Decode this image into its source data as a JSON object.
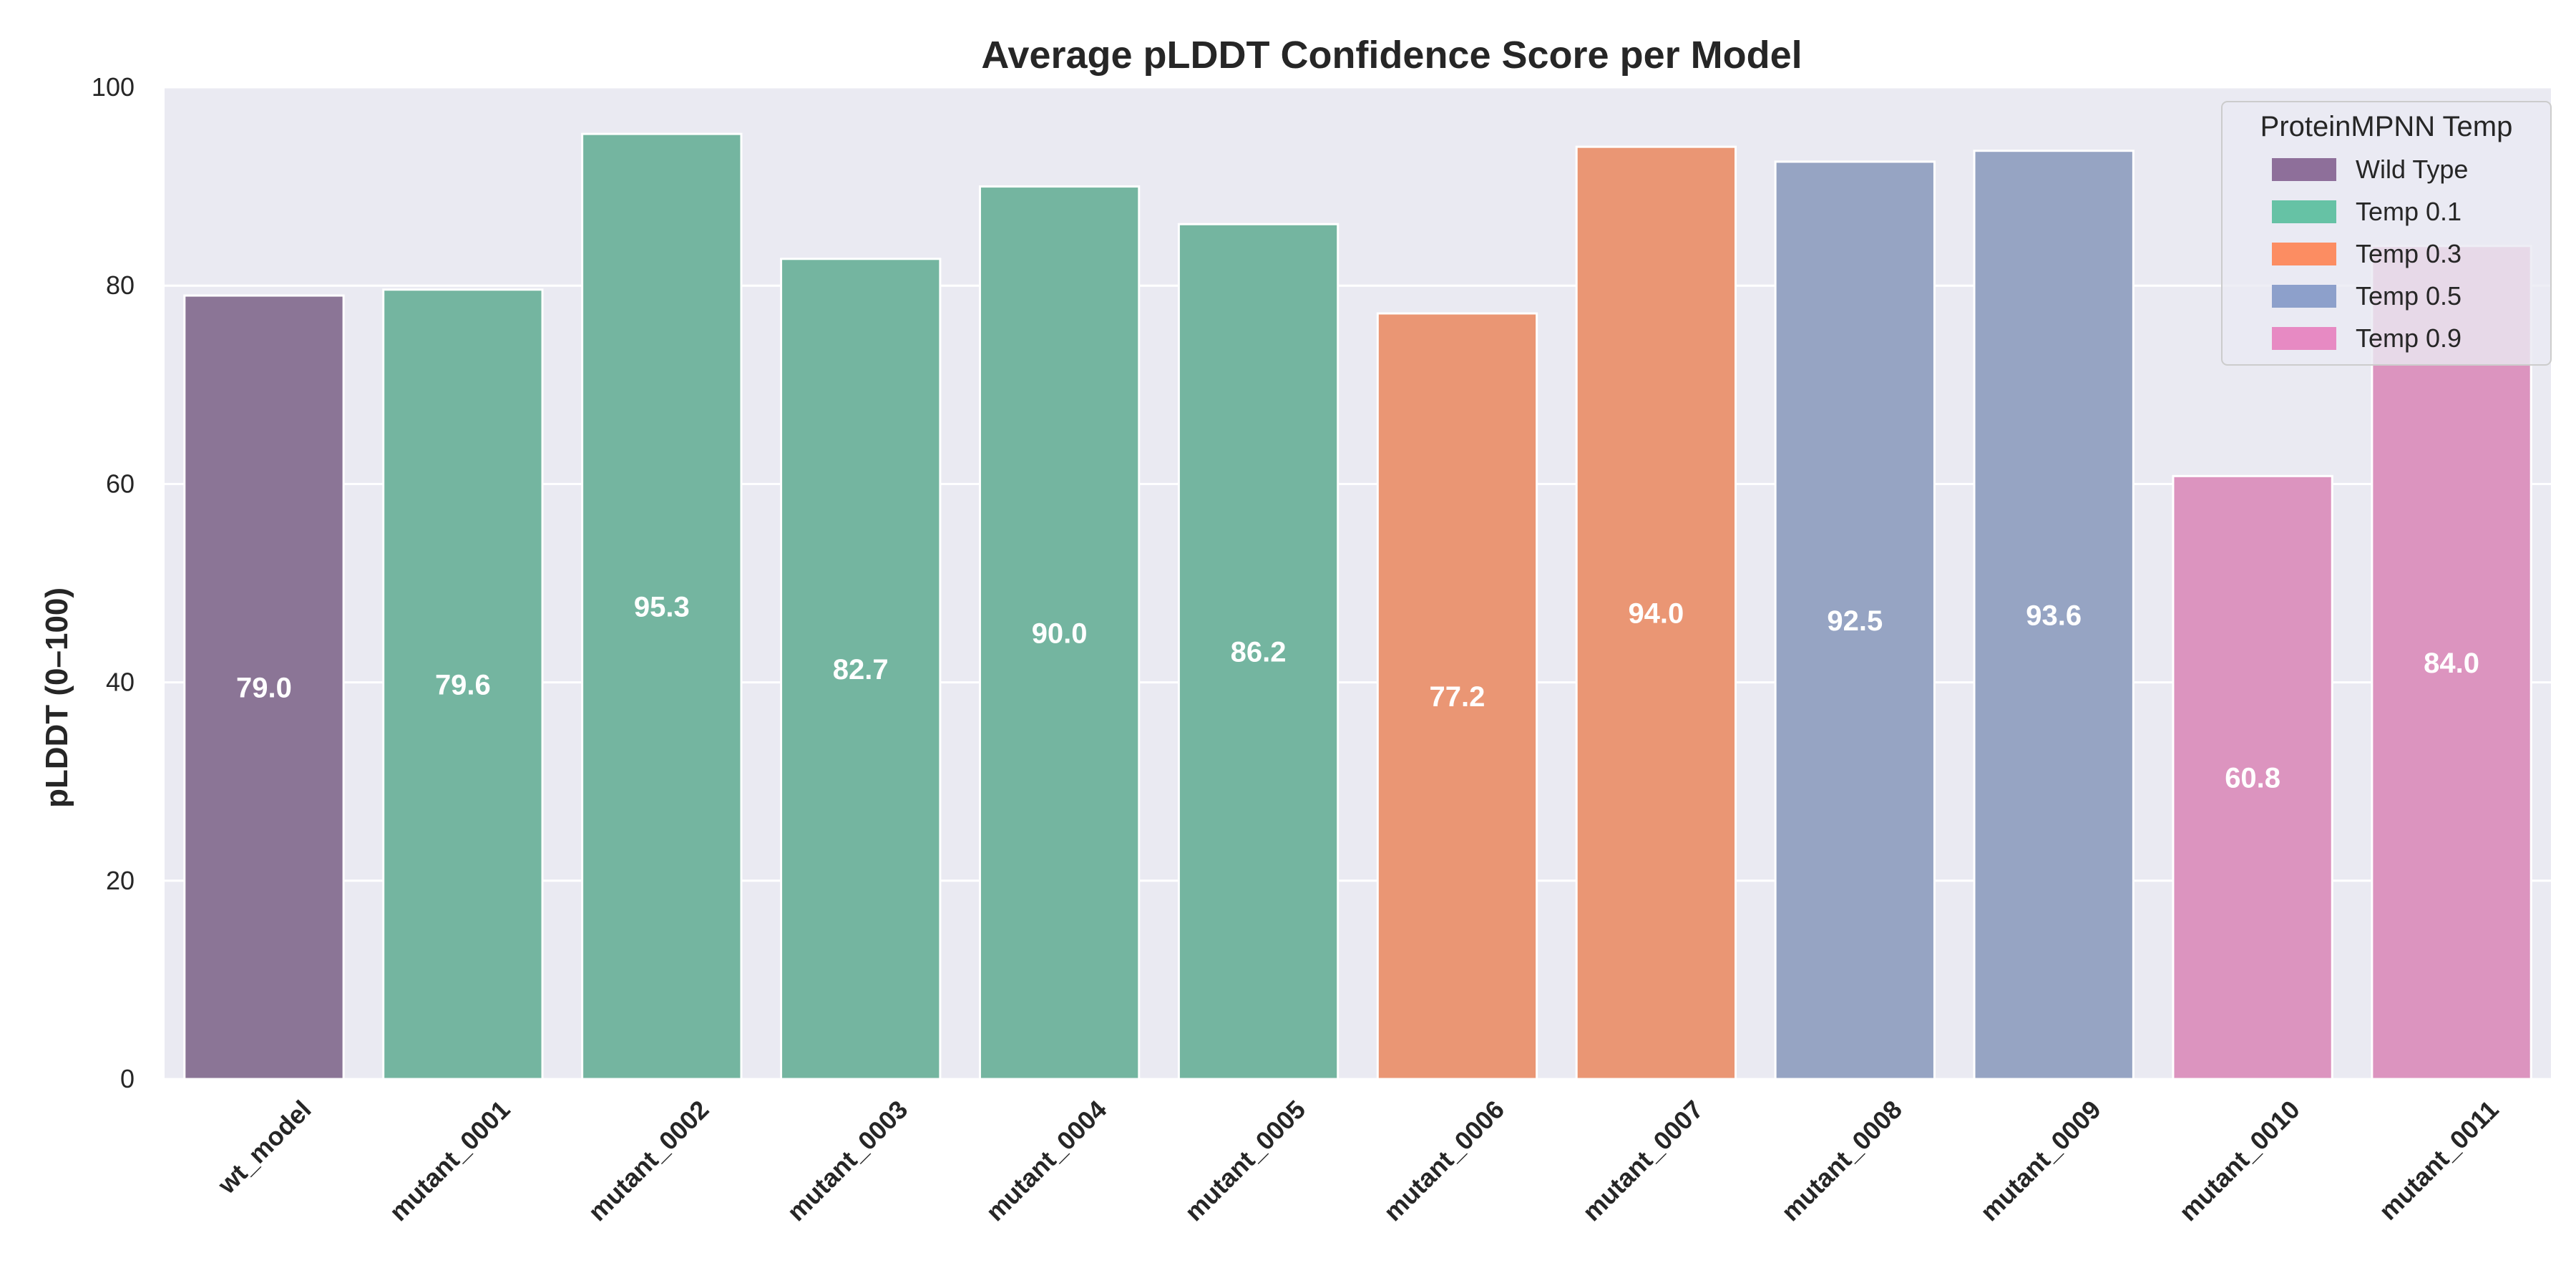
{
  "chart_data": {
    "type": "bar",
    "title": "Average pLDDT Confidence Score per Model",
    "xlabel": "",
    "ylabel": "pLDDT (0–100)",
    "ylim": [
      0,
      100
    ],
    "yticks": [
      "0",
      "20",
      "40",
      "60",
      "80",
      "100"
    ],
    "grid": true,
    "legend": {
      "title": "ProteinMPNN Temp",
      "placement": "top-right",
      "entries": [
        {
          "label": "Wild Type",
          "color": "#8e6f9a"
        },
        {
          "label": "Temp 0.1",
          "color": "#66c2a5"
        },
        {
          "label": "Temp 0.3",
          "color": "#fc8d62"
        },
        {
          "label": "Temp 0.5",
          "color": "#8da0cb"
        },
        {
          "label": "Temp 0.9",
          "color": "#e78ac3"
        }
      ]
    },
    "categories": [
      "wt_model",
      "mutant_0001",
      "mutant_0002",
      "mutant_0003",
      "mutant_0004",
      "mutant_0005",
      "mutant_0006",
      "mutant_0007",
      "mutant_0008",
      "mutant_0009",
      "mutant_0010",
      "mutant_0011"
    ],
    "values": [
      79.0,
      79.6,
      95.3,
      82.7,
      90.0,
      86.2,
      77.2,
      94.0,
      92.5,
      93.6,
      60.8,
      84.0
    ],
    "value_labels": [
      "79.0",
      "79.6",
      "95.3",
      "82.7",
      "90.0",
      "86.2",
      "77.2",
      "94.0",
      "92.5",
      "93.6",
      "60.8",
      "84.0"
    ],
    "groups": [
      "Wild Type",
      "Temp 0.1",
      "Temp 0.1",
      "Temp 0.1",
      "Temp 0.1",
      "Temp 0.1",
      "Temp 0.3",
      "Temp 0.3",
      "Temp 0.5",
      "Temp 0.5",
      "Temp 0.9",
      "Temp 0.9"
    ],
    "bar_colors": [
      "#8b7596",
      "#74b5a0",
      "#74b5a0",
      "#74b5a0",
      "#74b5a0",
      "#74b5a0",
      "#ea9674",
      "#ea9674",
      "#96a4c3",
      "#96a4c3",
      "#dc94bf",
      "#dc94bf"
    ],
    "background_color": "#eaeaf2"
  }
}
